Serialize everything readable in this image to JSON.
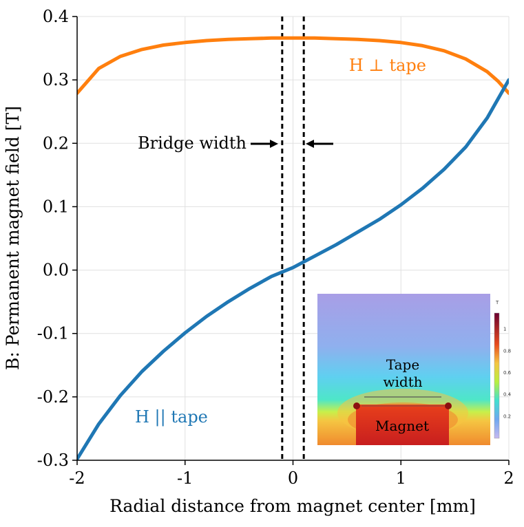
{
  "chart_data": {
    "type": "line",
    "xlabel": "Radial distance from magnet center [mm]",
    "ylabel": "B: Permanent magnet field [T]",
    "xlim": [
      -2,
      2
    ],
    "ylim": [
      -0.3,
      0.4
    ],
    "x_ticks": [
      "-2",
      "-1",
      "0",
      "1",
      "2"
    ],
    "y_ticks": [
      "-0.3",
      "-0.2",
      "-0.1",
      "0.0",
      "0.1",
      "0.2",
      "0.3",
      "0.4"
    ],
    "grid": true,
    "series": [
      {
        "name": "H ⊥ tape",
        "color": "#ff7f0e",
        "x": [
          -2.0,
          -1.8,
          -1.6,
          -1.4,
          -1.2,
          -1.0,
          -0.8,
          -0.6,
          -0.4,
          -0.2,
          0.0,
          0.2,
          0.4,
          0.6,
          0.8,
          1.0,
          1.2,
          1.4,
          1.6,
          1.8,
          1.9,
          2.0
        ],
        "y": [
          0.279,
          0.318,
          0.337,
          0.348,
          0.355,
          0.359,
          0.362,
          0.364,
          0.365,
          0.366,
          0.366,
          0.366,
          0.365,
          0.364,
          0.362,
          0.359,
          0.354,
          0.346,
          0.333,
          0.313,
          0.298,
          0.279
        ]
      },
      {
        "name": "H || tape",
        "color": "#1f77b4",
        "x": [
          -2.0,
          -1.8,
          -1.6,
          -1.4,
          -1.2,
          -1.0,
          -0.8,
          -0.6,
          -0.4,
          -0.2,
          0.0,
          0.2,
          0.4,
          0.6,
          0.8,
          1.0,
          1.2,
          1.4,
          1.6,
          1.8,
          2.0
        ],
        "y": [
          -0.298,
          -0.243,
          -0.198,
          -0.16,
          -0.128,
          -0.099,
          -0.073,
          -0.05,
          -0.029,
          -0.01,
          0.004,
          0.022,
          0.04,
          0.06,
          0.08,
          0.103,
          0.129,
          0.159,
          0.194,
          0.24,
          0.3
        ]
      }
    ],
    "vlines": [
      -0.1,
      0.1
    ],
    "annotations": {
      "h_perp": "H ⊥ tape",
      "h_par": "H || tape",
      "bridge": "Bridge width"
    },
    "inset": {
      "tape_label_line1": "Tape",
      "tape_label_line2": "width",
      "magnet_label": "Magnet",
      "colorbar_unit": "T",
      "colorbar_ticks": [
        "1",
        "0.8",
        "0.6",
        "0.4",
        "0.2"
      ]
    }
  }
}
